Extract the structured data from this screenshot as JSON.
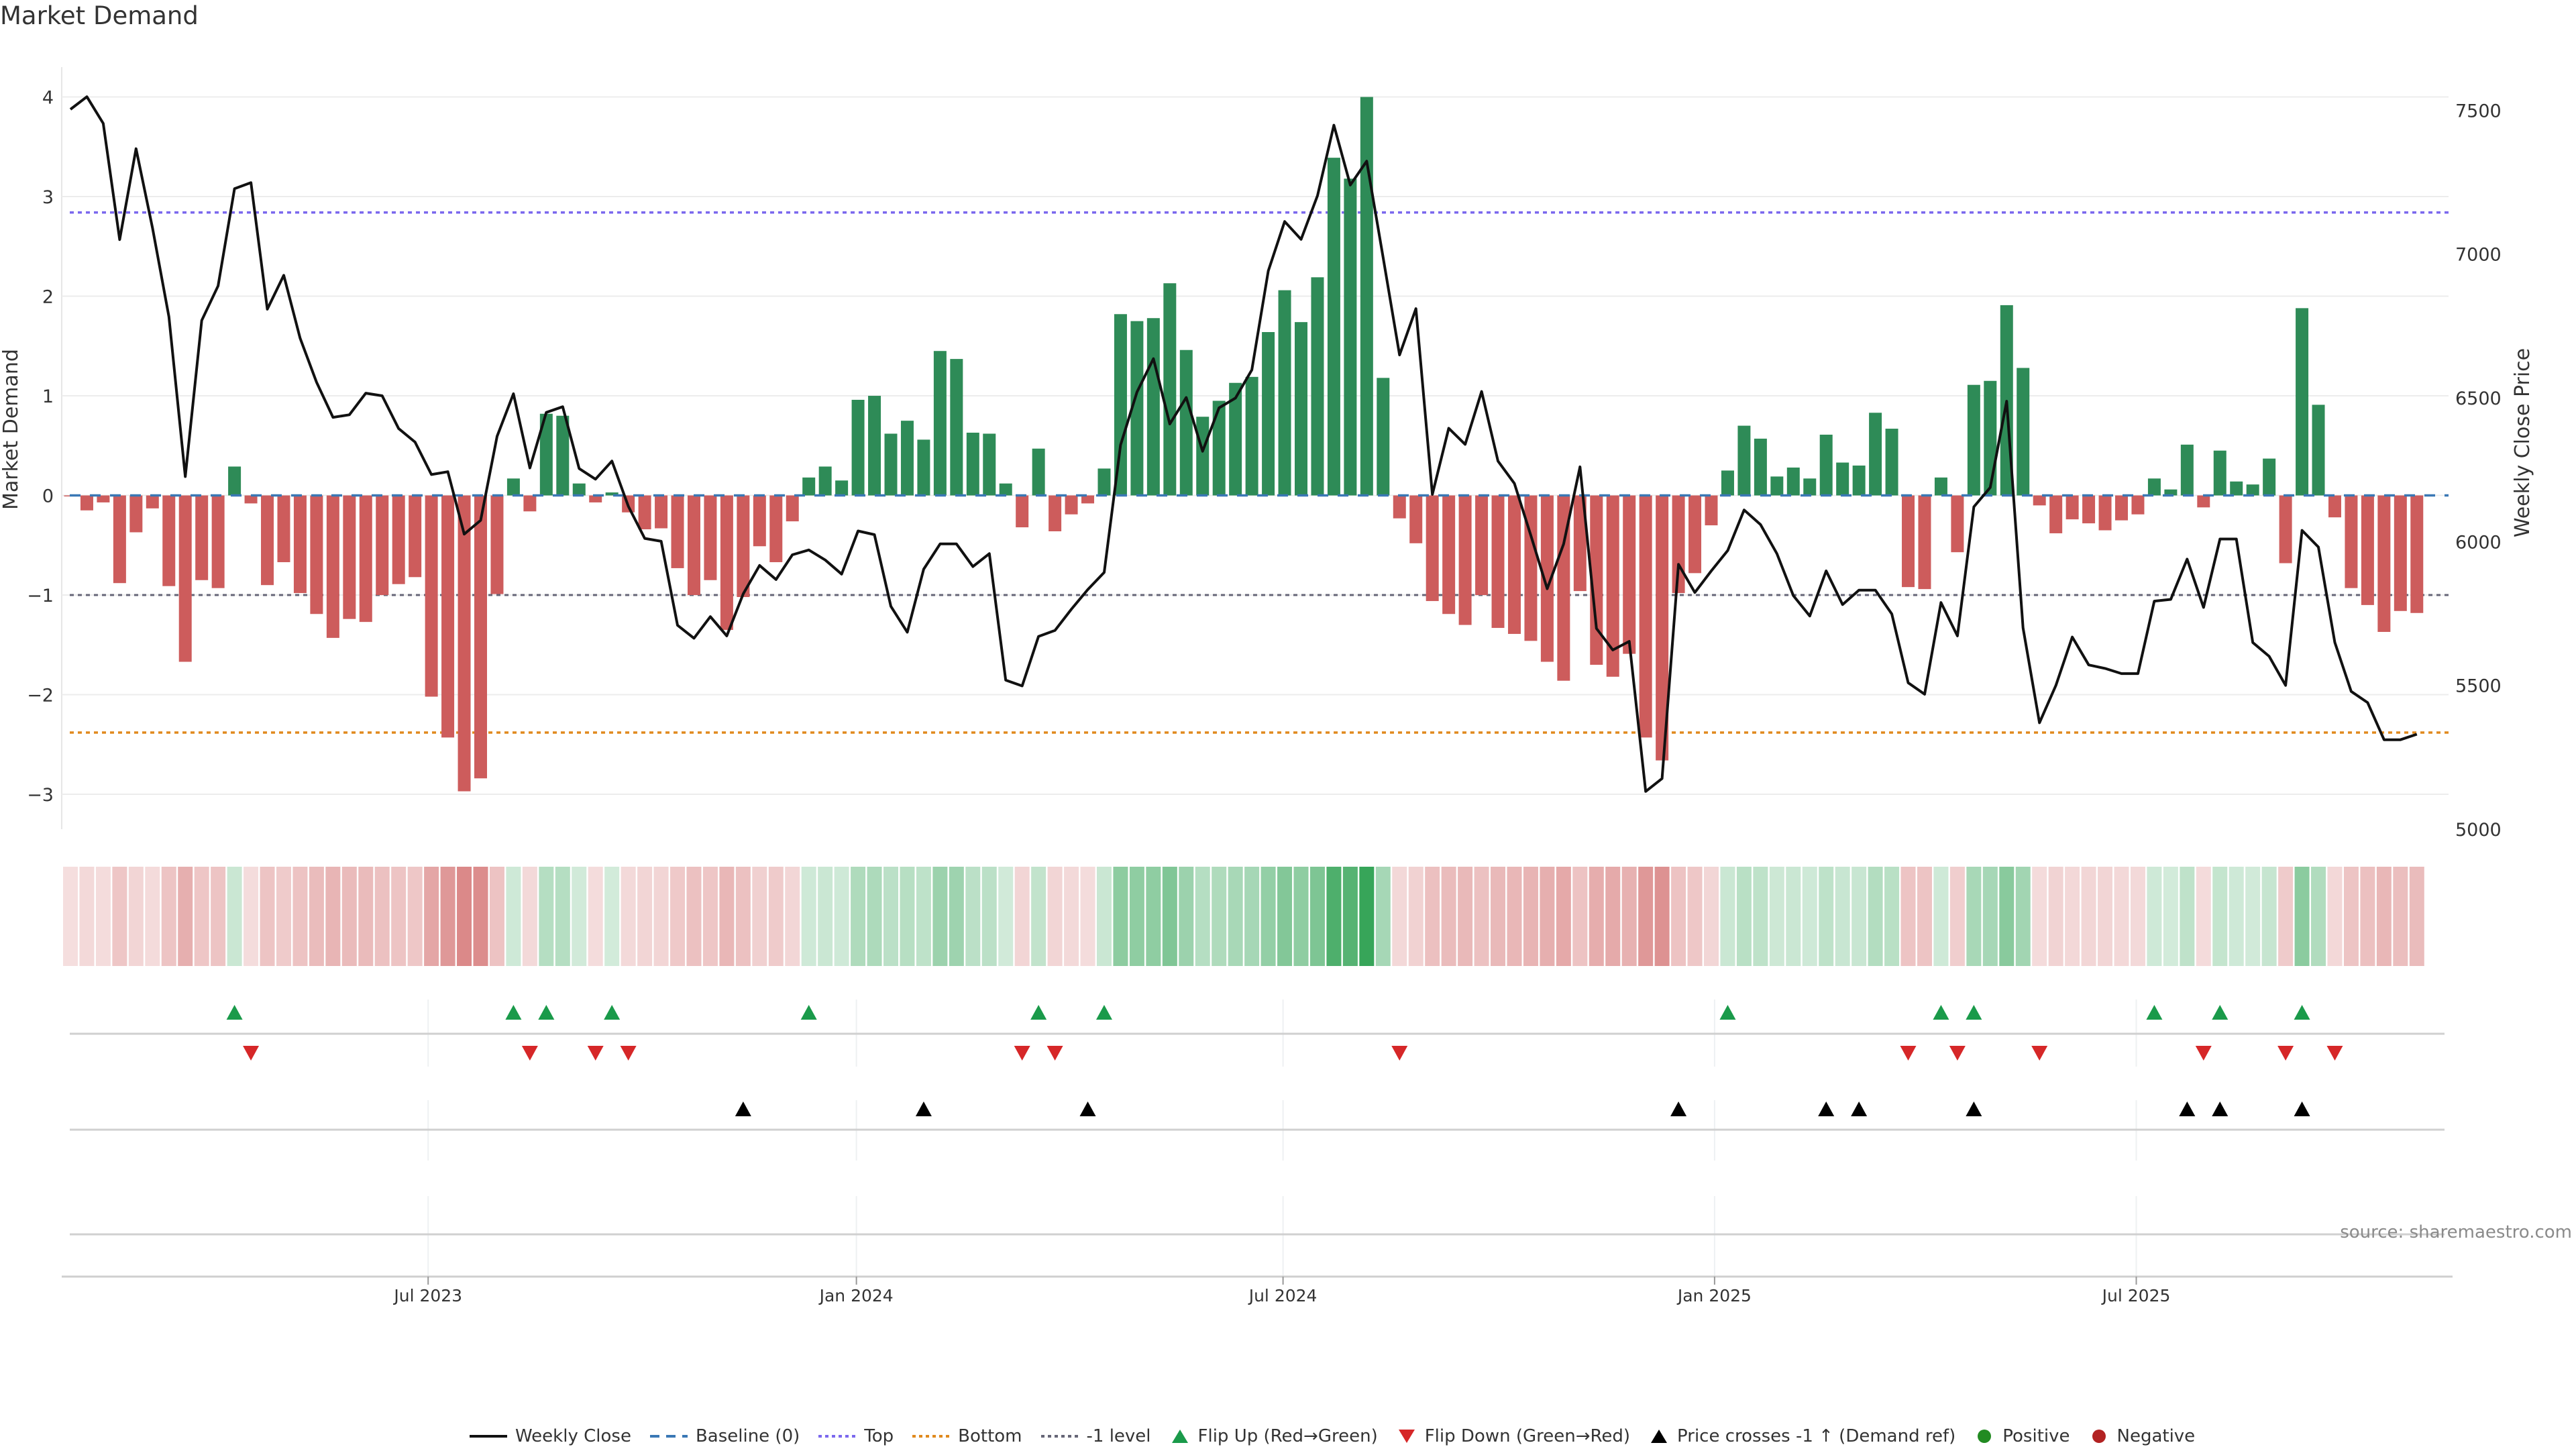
{
  "title": "Market Demand",
  "source": "source: sharemaestro.com",
  "legend": {
    "weekly_close": "Weekly Close",
    "baseline": "Baseline (0)",
    "top": "Top",
    "bottom": "Bottom",
    "minus1": "-1 level",
    "flip_up": "Flip Up (Red→Green)",
    "flip_down": "Flip Down (Green→Red)",
    "price_cross": "Price crosses -1 ↑ (Demand ref)",
    "positive": "Positive",
    "negative": "Negative"
  },
  "colors": {
    "positive_bar": "#2e8b57",
    "negative_bar": "#cd5c5c",
    "price_line": "#111111",
    "baseline": "#3a78b5",
    "top": "#7b68ee",
    "bottom": "#e08a1e",
    "minus1": "#666677",
    "flip_up": "#1a9a4a",
    "flip_down": "#d62728",
    "cross": "#000000",
    "positive_dot": "#228b22",
    "negative_dot": "#b22222"
  },
  "chart_data": {
    "type": "bar",
    "title": "Market Demand",
    "ylabel": "Market Demand",
    "y2label": "Weekly Close Price",
    "ylim": [
      -3.35,
      4.3
    ],
    "y2lim": [
      5000,
      7650
    ],
    "yticks": [
      4,
      3,
      2,
      1,
      0,
      -1,
      -2,
      -3
    ],
    "ytick_labels": [
      "4",
      "3",
      "2",
      "1",
      "0",
      "−1",
      "−2",
      "−3"
    ],
    "y2ticks": [
      7500,
      7000,
      6500,
      6000,
      5500,
      5000
    ],
    "y2tick_labels": [
      "7500",
      "7000",
      "6500",
      "6000",
      "5500",
      "5000"
    ],
    "xticks": [
      {
        "pos": 22.8,
        "label": "Jul 2023"
      },
      {
        "pos": 48.9,
        "label": "Jan 2024"
      },
      {
        "pos": 74.9,
        "label": "Jul 2024"
      },
      {
        "pos": 101.2,
        "label": "Jan 2025"
      },
      {
        "pos": 126.9,
        "label": "Jul 2025"
      }
    ],
    "levels": {
      "baseline": 0,
      "top": 2.84,
      "bottom": -2.38,
      "minus1": -1
    },
    "demand": [
      -0.01,
      -0.15,
      -0.07,
      -0.88,
      -0.37,
      -0.13,
      -0.91,
      -1.67,
      -0.85,
      -0.93,
      0.29,
      -0.08,
      -0.9,
      -0.67,
      -0.98,
      -1.19,
      -1.43,
      -1.24,
      -1.27,
      -1.0,
      -0.89,
      -0.82,
      -2.02,
      -2.43,
      -2.97,
      -2.84,
      -0.99,
      0.17,
      -0.16,
      0.82,
      0.8,
      0.12,
      -0.07,
      0.03,
      -0.17,
      -0.34,
      -0.33,
      -0.73,
      -1.0,
      -0.85,
      -1.35,
      -1.02,
      -0.51,
      -0.67,
      -0.26,
      0.18,
      0.29,
      0.15,
      0.96,
      1.0,
      0.62,
      0.75,
      0.56,
      1.45,
      1.37,
      0.63,
      0.62,
      0.12,
      -0.32,
      0.47,
      -0.36,
      -0.19,
      -0.08,
      0.27,
      1.82,
      1.75,
      1.78,
      2.13,
      1.46,
      0.79,
      0.95,
      1.13,
      1.19,
      1.64,
      2.06,
      1.74,
      2.19,
      3.39,
      3.18,
      4.0,
      1.18,
      -0.23,
      -0.48,
      -1.06,
      -1.19,
      -1.3,
      -1.0,
      -1.33,
      -1.39,
      -1.46,
      -1.67,
      -1.86,
      -0.96,
      -1.7,
      -1.82,
      -1.59,
      -2.43,
      -2.66,
      -0.98,
      -0.78,
      -0.3,
      0.25,
      0.7,
      0.57,
      0.19,
      0.28,
      0.17,
      0.61,
      0.33,
      0.3,
      0.83,
      0.67,
      -0.92,
      -0.94,
      0.18,
      -0.57,
      1.11,
      1.15,
      1.91,
      1.28,
      -0.1,
      -0.38,
      -0.24,
      -0.28,
      -0.35,
      -0.25,
      -0.19,
      0.17,
      0.06,
      0.51,
      -0.12,
      0.45,
      0.14,
      0.11,
      0.37,
      -0.68,
      1.88,
      0.91,
      -0.22,
      -0.93,
      -1.1,
      -1.37,
      -1.16,
      -1.18
    ],
    "weekly_close": [
      7503,
      7547,
      7454,
      7050,
      7366,
      7091,
      6782,
      6226,
      6769,
      6889,
      7227,
      7248,
      6808,
      6926,
      6707,
      6554,
      6432,
      6441,
      6516,
      6507,
      6393,
      6346,
      6233,
      6243,
      6026,
      6074,
      6366,
      6514,
      6256,
      6449,
      6469,
      6254,
      6217,
      6280,
      6123,
      6011,
      6001,
      5709,
      5664,
      5739,
      5672,
      5818,
      5917,
      5868,
      5954,
      5971,
      5936,
      5887,
      6037,
      6024,
      5775,
      5685,
      5904,
      5992,
      5992,
      5913,
      5958,
      5518,
      5498,
      5670,
      5691,
      5765,
      5833,
      5893,
      6336,
      6520,
      6636,
      6409,
      6501,
      6314,
      6465,
      6499,
      6597,
      6941,
      7113,
      7051,
      7203,
      7448,
      7240,
      7323,
      6988,
      6649,
      6810,
      6164,
      6394,
      6338,
      6522,
      6280,
      6202,
      6022,
      5836,
      5992,
      6260,
      5698,
      5623,
      5653,
      5131,
      5176,
      5921,
      5823,
      5898,
      5969,
      6110,
      6059,
      5958,
      5812,
      5741,
      5898,
      5781,
      5831,
      5831,
      5748,
      5509,
      5469,
      5788,
      5672,
      6121,
      6188,
      6488,
      5700,
      5370,
      5500,
      5668,
      5571,
      5559,
      5541,
      5541,
      5793,
      5799,
      5939,
      5771,
      6009,
      6009,
      5649,
      5601,
      5500,
      6039,
      5981,
      5649,
      5479,
      5440,
      5311,
      5311,
      5330
    ],
    "flip_up_weeks": [
      11,
      28,
      30,
      34,
      46,
      60,
      64,
      102,
      115,
      117,
      128,
      132,
      137
    ],
    "flip_down_weeks": [
      12,
      29,
      33,
      35,
      59,
      61,
      82,
      113,
      116,
      121,
      131,
      136,
      139
    ],
    "price_cross_weeks": [
      42,
      53,
      63,
      99,
      108,
      110,
      117,
      130,
      132,
      137
    ]
  }
}
